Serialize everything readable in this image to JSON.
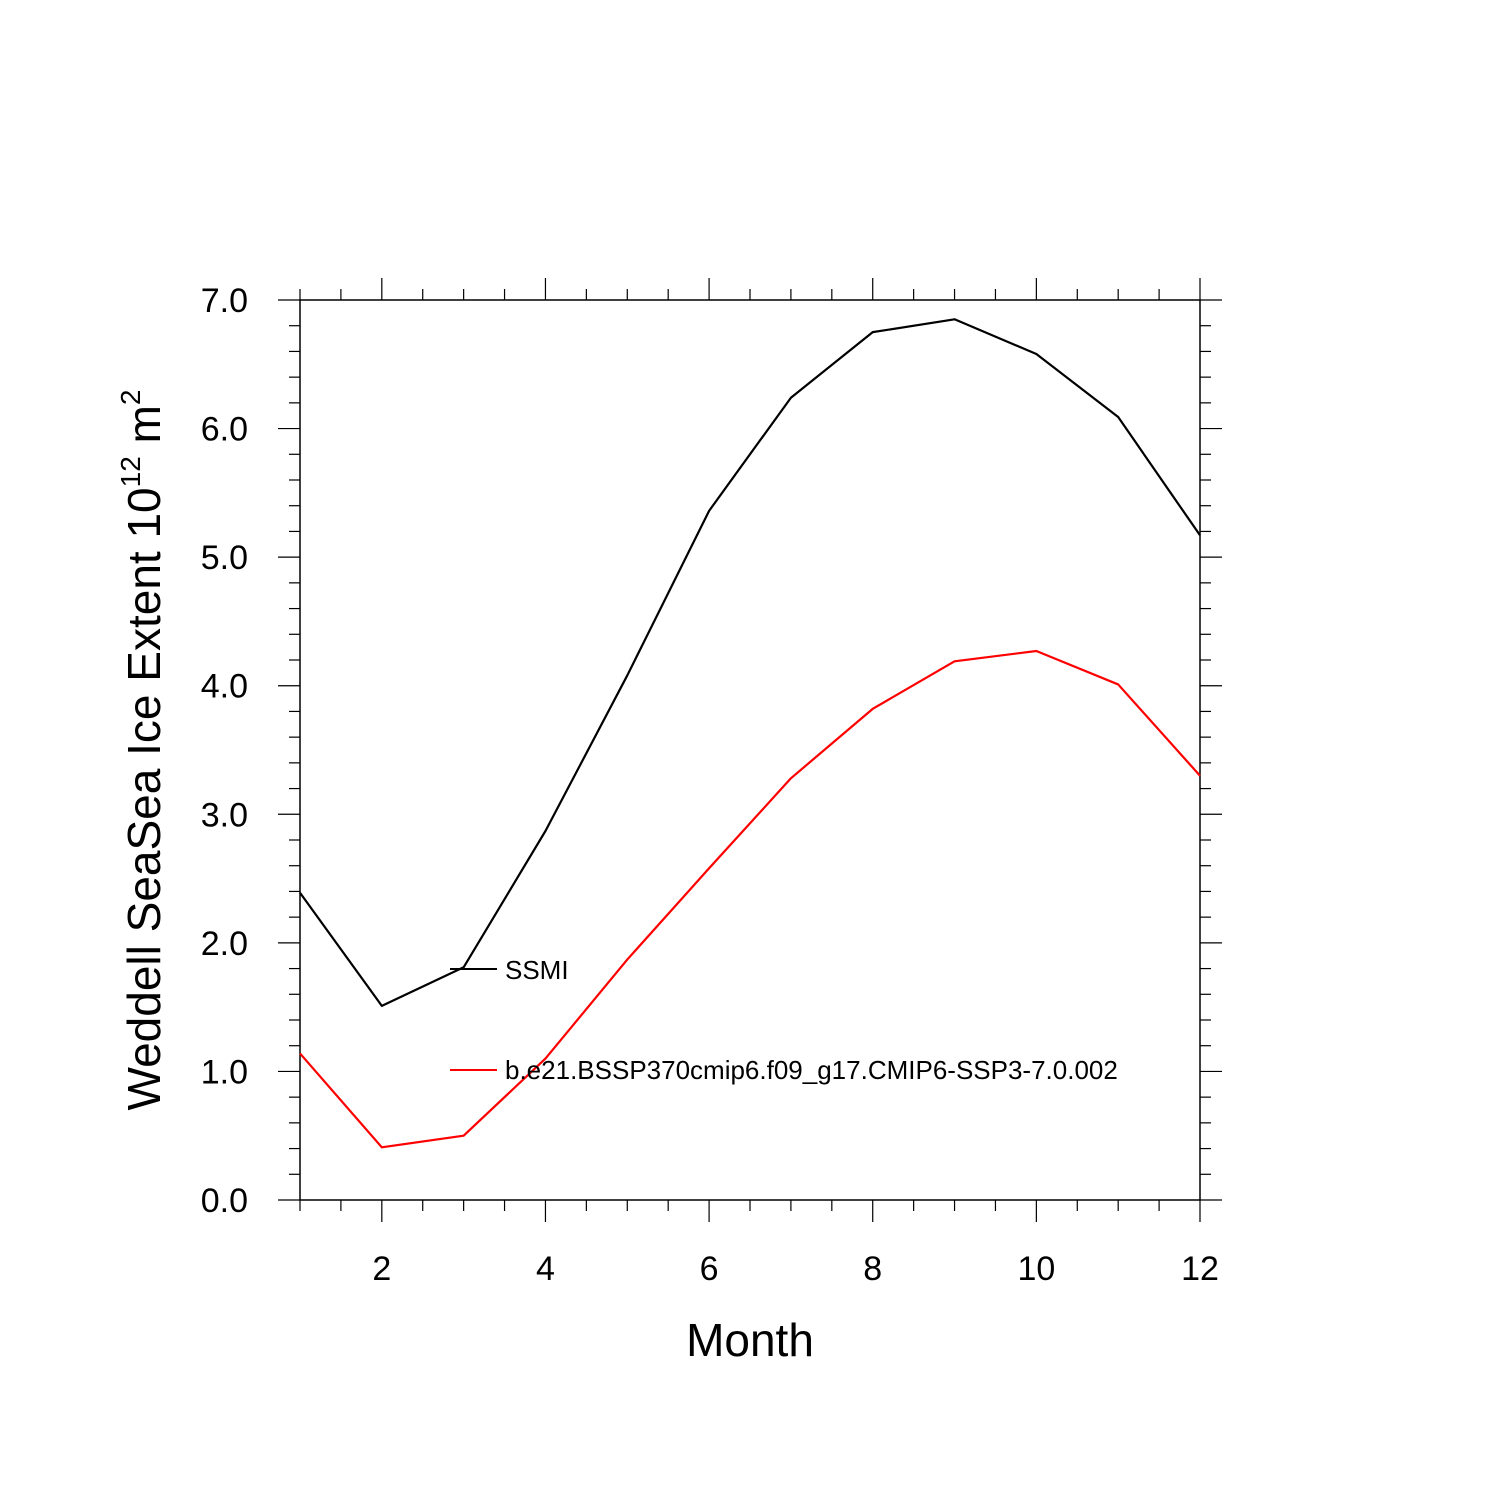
{
  "chart_data": {
    "type": "line",
    "xlabel": "Month",
    "ylabel_main": "Weddell SeaSea Ice Extent 10",
    "ylabel_exp": "12",
    "ylabel_unit": " m",
    "ylabel_unit_exp": "2",
    "xlim": [
      1,
      12
    ],
    "ylim": [
      0,
      7
    ],
    "x_ticks": [
      2,
      4,
      6,
      8,
      10,
      12
    ],
    "x_tick_labels": [
      "2",
      "4",
      "6",
      "8",
      "10",
      "12"
    ],
    "y_ticks": [
      0,
      1,
      2,
      3,
      4,
      5,
      6,
      7
    ],
    "y_tick_labels": [
      "0.0",
      "1.0",
      "2.0",
      "3.0",
      "4.0",
      "5.0",
      "6.0",
      "7.0"
    ],
    "x": [
      1,
      2,
      3,
      4,
      5,
      6,
      7,
      8,
      9,
      10,
      11,
      12
    ],
    "series": [
      {
        "name": "SSMI",
        "color": "#000000",
        "values": [
          2.39,
          1.51,
          1.81,
          2.87,
          4.08,
          5.36,
          6.24,
          6.75,
          6.85,
          6.58,
          6.09,
          5.17
        ]
      },
      {
        "name": "b.e21.BSSP370cmip6.f09_g17.CMIP6-SSP3-7.0.002",
        "color": "#ff0000",
        "values": [
          1.14,
          0.41,
          0.5,
          1.1,
          1.87,
          2.58,
          3.28,
          3.82,
          4.19,
          4.27,
          4.01,
          3.3
        ]
      }
    ],
    "legend_placement": "inside-center"
  }
}
